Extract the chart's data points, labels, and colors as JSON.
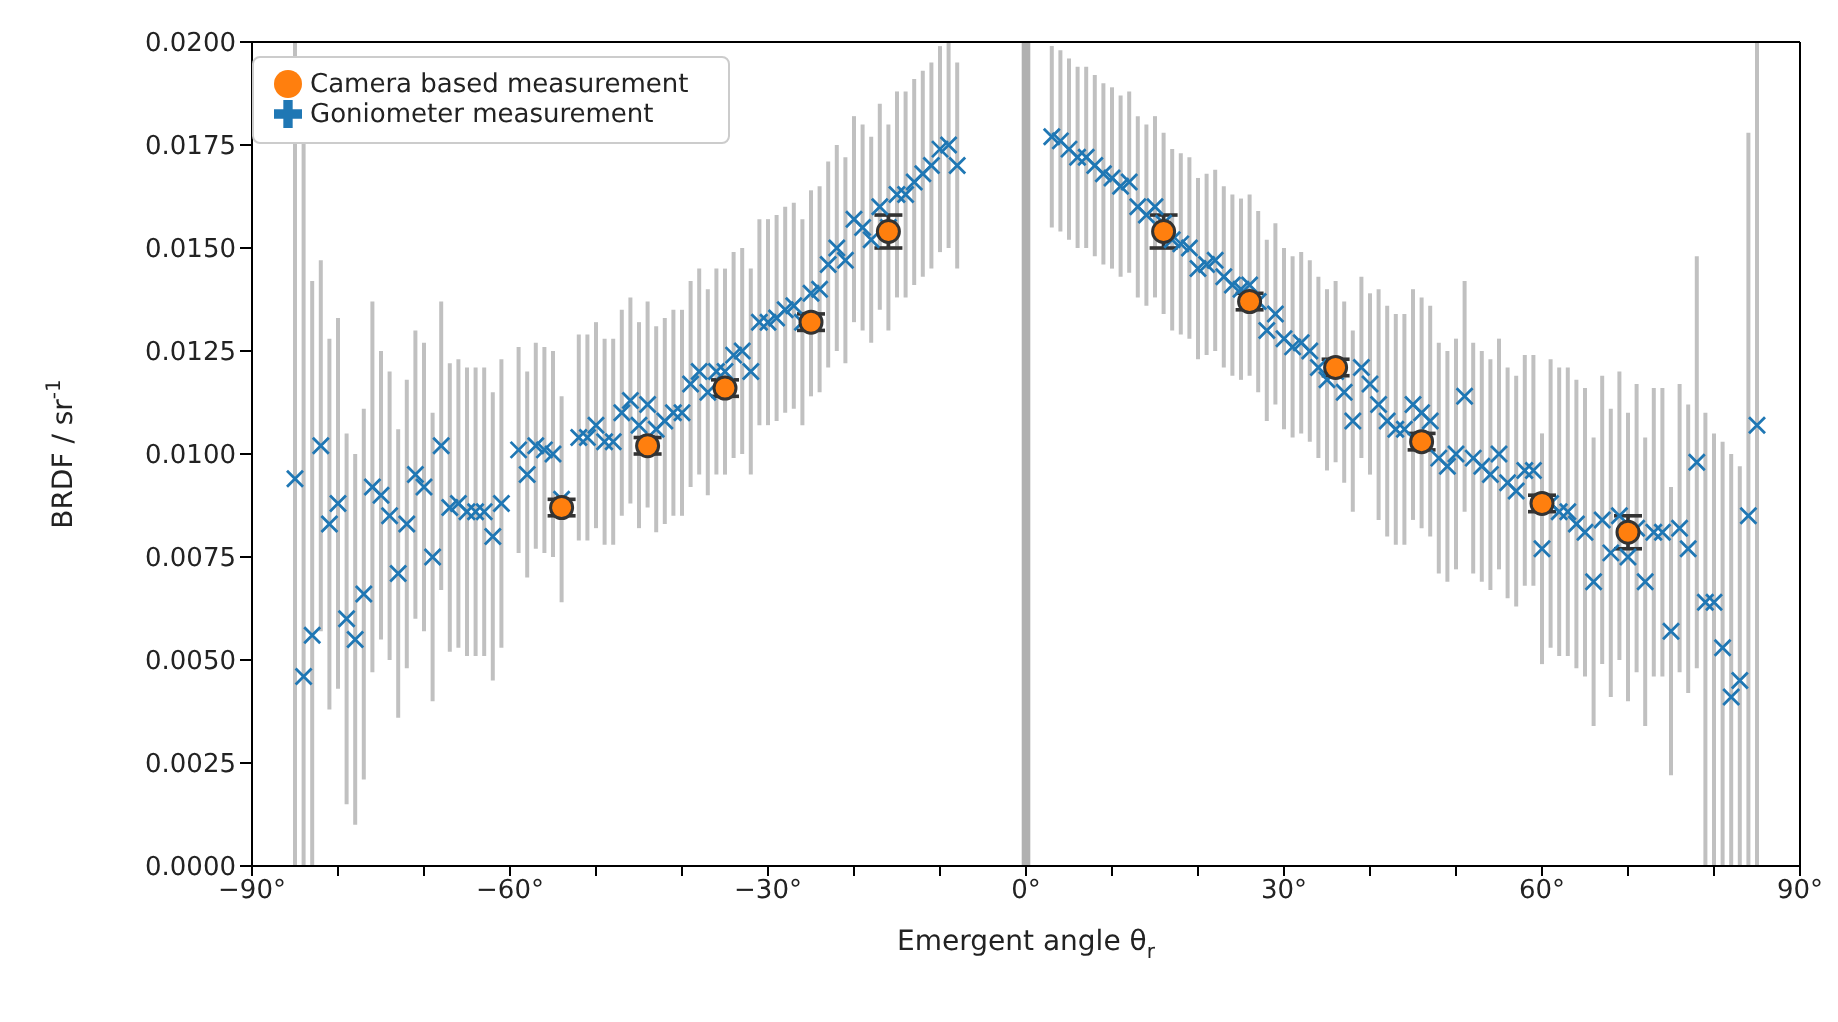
{
  "chart_data": {
    "type": "scatter",
    "xlabel": "Emergent angle θ$_{r}$",
    "ylabel": "BRDF / sr$^{-1}$",
    "xlim": [
      -90,
      90
    ],
    "xticks": [
      {
        "value": -90,
        "label": "−90°"
      },
      {
        "value": -80,
        "label": null
      },
      {
        "value": -70,
        "label": null
      },
      {
        "value": -60,
        "label": "−60°"
      },
      {
        "value": -50,
        "label": null
      },
      {
        "value": -40,
        "label": null
      },
      {
        "value": -30,
        "label": "−30°"
      },
      {
        "value": -20,
        "label": null
      },
      {
        "value": -10,
        "label": null
      },
      {
        "value": 0,
        "label": "0°"
      },
      {
        "value": 10,
        "label": null
      },
      {
        "value": 20,
        "label": null
      },
      {
        "value": 30,
        "label": "30°"
      },
      {
        "value": 40,
        "label": null
      },
      {
        "value": 50,
        "label": null
      },
      {
        "value": 60,
        "label": "60°"
      },
      {
        "value": 70,
        "label": null
      },
      {
        "value": 80,
        "label": null
      },
      {
        "value": 90,
        "label": "90°"
      }
    ],
    "ylim": [
      0,
      0.02
    ],
    "yticks": [
      {
        "value": 0,
        "label": "0.0000"
      },
      {
        "value": 0.0025,
        "label": "0.0025"
      },
      {
        "value": 0.005,
        "label": "0.0050"
      },
      {
        "value": 0.0075,
        "label": "0.0075"
      },
      {
        "value": 0.01,
        "label": "0.0100"
      },
      {
        "value": 0.0125,
        "label": "0.0125"
      },
      {
        "value": 0.015,
        "label": "0.0150"
      },
      {
        "value": 0.0175,
        "label": "0.0175"
      },
      {
        "value": 0.02,
        "label": "0.0200"
      }
    ],
    "legend": "top left",
    "bands": [
      {
        "axis": "x",
        "from": -0.5,
        "to": 0.5,
        "label": null,
        "color": "#b0b0b0"
      }
    ],
    "series": [
      {
        "name": "Camera based measurement",
        "color": "#ff7f0e",
        "marker": "circle",
        "x": [
          -54,
          -44,
          -35,
          -25,
          -16,
          16,
          26,
          36,
          46,
          60,
          70
        ],
        "values": [
          0.0087,
          0.0102,
          0.0116,
          0.0132,
          0.0154,
          0.0154,
          0.0137,
          0.0121,
          0.0103,
          0.0088,
          0.0081
        ],
        "errors": [
          0.0002,
          0.0002,
          0.0002,
          0.0002,
          0.0004,
          0.0004,
          0.0002,
          0.0002,
          0.0002,
          0.0002,
          0.0004
        ]
      },
      {
        "name": "Goniometer measurement",
        "color": "#1f77b4",
        "marker": "cross",
        "x": [
          -85,
          -84,
          -83,
          -82,
          -81,
          -80,
          -79,
          -78,
          -77,
          -76,
          -75,
          -74,
          -73,
          -72,
          -71,
          -70,
          -69,
          -68,
          -67,
          -66,
          -65,
          -64,
          -63,
          -62,
          -61,
          -59,
          -58,
          -57,
          -56,
          -55,
          -54,
          -52,
          -51,
          -50,
          -49,
          -48,
          -47,
          -46,
          -45,
          -44,
          -43,
          -42,
          -41,
          -40,
          -39,
          -38,
          -37,
          -36,
          -35,
          -34,
          -33,
          -32,
          -31,
          -30,
          -29,
          -28,
          -27,
          -26,
          -25,
          -24,
          -23,
          -22,
          -21,
          -20,
          -19,
          -18,
          -17,
          -16,
          -15,
          -14,
          -13,
          -12,
          -11,
          -10,
          -9,
          -8,
          3,
          4,
          5,
          6,
          7,
          8,
          9,
          10,
          11,
          12,
          13,
          14,
          15,
          16,
          17,
          18,
          19,
          20,
          21,
          22,
          23,
          24,
          25,
          26,
          27,
          28,
          29,
          30,
          31,
          32,
          33,
          34,
          35,
          36,
          37,
          38,
          39,
          40,
          41,
          42,
          43,
          44,
          45,
          46,
          47,
          48,
          49,
          50,
          51,
          52,
          53,
          54,
          55,
          56,
          57,
          58,
          59,
          60,
          61,
          62,
          63,
          64,
          65,
          66,
          67,
          68,
          69,
          70,
          71,
          72,
          73,
          74,
          75,
          76,
          77,
          78,
          79,
          80,
          81,
          82,
          83,
          84,
          85
        ],
        "values": [
          0.0094,
          0.0046,
          0.0056,
          0.0102,
          0.0083,
          0.0088,
          0.006,
          0.0055,
          0.0066,
          0.0092,
          0.009,
          0.0085,
          0.0071,
          0.0083,
          0.0095,
          0.0092,
          0.0075,
          0.0102,
          0.0087,
          0.0088,
          0.0086,
          0.0086,
          0.0086,
          0.008,
          0.0088,
          0.0101,
          0.0095,
          0.0102,
          0.0101,
          0.01,
          0.0089,
          0.0104,
          0.0104,
          0.0107,
          0.0103,
          0.0103,
          0.011,
          0.0113,
          0.0107,
          0.0112,
          0.0106,
          0.0108,
          0.011,
          0.011,
          0.0117,
          0.012,
          0.0115,
          0.012,
          0.012,
          0.0124,
          0.0125,
          0.012,
          0.0132,
          0.0132,
          0.0133,
          0.0135,
          0.0136,
          0.0132,
          0.0139,
          0.014,
          0.0146,
          0.015,
          0.0147,
          0.0157,
          0.0155,
          0.0152,
          0.016,
          0.0155,
          0.0163,
          0.0163,
          0.0166,
          0.0168,
          0.017,
          0.0174,
          0.0175,
          0.017,
          0.0177,
          0.0176,
          0.0174,
          0.0172,
          0.0172,
          0.017,
          0.0168,
          0.0167,
          0.0165,
          0.0166,
          0.016,
          0.0158,
          0.016,
          0.0156,
          0.0152,
          0.0151,
          0.015,
          0.0145,
          0.0146,
          0.0147,
          0.0143,
          0.0141,
          0.014,
          0.0141,
          0.0137,
          0.013,
          0.0134,
          0.0128,
          0.0126,
          0.0127,
          0.0125,
          0.0121,
          0.0118,
          0.012,
          0.0115,
          0.0108,
          0.0121,
          0.0117,
          0.0112,
          0.0108,
          0.0106,
          0.0106,
          0.0112,
          0.011,
          0.0108,
          0.0099,
          0.0097,
          0.01,
          0.0114,
          0.0099,
          0.0097,
          0.0095,
          0.01,
          0.0093,
          0.0091,
          0.0096,
          0.0096,
          0.0077,
          0.0088,
          0.0086,
          0.0086,
          0.0083,
          0.0081,
          0.0069,
          0.0084,
          0.0076,
          0.0085,
          0.0075,
          0.0082,
          0.0069,
          0.0081,
          0.0081,
          0.0057,
          0.0082,
          0.0077,
          0.0098,
          0.0064,
          0.0064,
          0.0053,
          0.0041,
          0.0045,
          0.0085,
          0.0107
        ],
        "errors": [
          [
            0,
            0.02
          ],
          [
            0,
            0.0195
          ],
          [
            0,
            0.0142
          ],
          0.0045,
          0.0045,
          0.0045,
          0.0045,
          0.0045,
          0.0045,
          0.0045,
          0.0035,
          0.0035,
          0.0035,
          0.0035,
          0.0035,
          0.0035,
          0.0035,
          0.0035,
          0.0035,
          0.0035,
          0.0035,
          0.0035,
          0.0035,
          0.0035,
          0.0035,
          0.0025,
          0.0025,
          0.0025,
          0.0025,
          0.0025,
          0.0025,
          0.0025,
          0.0025,
          0.0025,
          0.0025,
          0.0025,
          0.0025,
          0.0025,
          0.0025,
          0.0025,
          0.0025,
          0.0025,
          0.0025,
          0.0025,
          0.0025,
          0.0025,
          0.0025,
          0.0025,
          0.0025,
          0.0025,
          0.0025,
          0.0025,
          0.0025,
          0.0025,
          0.0025,
          0.0025,
          0.0025,
          0.0025,
          0.0025,
          0.0025,
          0.0025,
          0.0025,
          0.0025,
          0.0025,
          0.0025,
          0.0025,
          0.0025,
          0.0025,
          0.0025,
          0.0025,
          0.0025,
          0.0025,
          0.0025,
          0.0025,
          0.0025,
          0.0025,
          0.0022,
          0.0022,
          0.0022,
          0.0022,
          0.0022,
          0.0022,
          0.0022,
          0.0022,
          0.0022,
          0.0022,
          0.0022,
          0.0022,
          0.0022,
          0.0022,
          0.0022,
          0.0022,
          0.0022,
          0.0022,
          0.0022,
          0.0022,
          0.0022,
          0.0022,
          0.0022,
          0.0022,
          0.0022,
          0.0022,
          0.0022,
          0.0022,
          0.0022,
          0.0022,
          0.0022,
          0.0022,
          0.0022,
          0.0022,
          0.0022,
          0.0022,
          0.0022,
          0.0022,
          0.0028,
          0.0028,
          0.0028,
          0.0028,
          0.0028,
          0.0028,
          0.0028,
          0.0028,
          0.0028,
          0.0028,
          0.0028,
          0.0028,
          0.0028,
          0.0028,
          0.0028,
          0.0028,
          0.0028,
          0.0028,
          0.0028,
          0.0028,
          0.0035,
          0.0035,
          0.0035,
          0.0035,
          0.0035,
          0.0035,
          0.0035,
          0.0035,
          0.0035,
          0.0035,
          0.0035,
          0.0035,
          0.0035,
          0.0035,
          0.0035,
          0.0035,
          0.0035,
          0.005,
          [
            0,
            0.011
          ],
          [
            0,
            0.0105
          ],
          [
            0,
            0.0103
          ],
          [
            0,
            0.01
          ],
          [
            0,
            0.0097
          ],
          [
            0,
            0.0178
          ],
          [
            0,
            0.02
          ]
        ]
      }
    ]
  }
}
